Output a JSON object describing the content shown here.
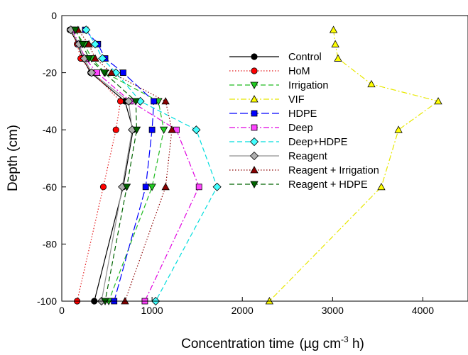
{
  "chart_data": {
    "type": "line",
    "orientation": "depth-profile",
    "xlabel": "Concentration time",
    "xlabel_unit_prefix": "(µg cm",
    "xlabel_unit_exp": "-3",
    "xlabel_unit_suffix": " h)",
    "ylabel": "Depth (cm)",
    "xlim": [
      0,
      4500
    ],
    "ylim": [
      -100,
      0
    ],
    "x_ticks": [
      0,
      1000,
      2000,
      3000,
      4000
    ],
    "y_ticks": [
      0,
      -20,
      -40,
      -60,
      -80,
      -100
    ],
    "grid": false,
    "legend_position": "top-right",
    "series": [
      {
        "name": "Control",
        "color": "#000000",
        "marker": "circle",
        "marker_fill": "#000000",
        "dash": "solid",
        "points": [
          [
            90,
            -5
          ],
          [
            180,
            -10
          ],
          [
            230,
            -15
          ],
          [
            320,
            -20
          ],
          [
            700,
            -30
          ],
          [
            790,
            -40
          ],
          [
            680,
            -60
          ],
          [
            360,
            -100
          ]
        ]
      },
      {
        "name": "HoM",
        "color": "#e41a1c",
        "marker": "circle",
        "marker_fill": "#ff0000",
        "dash": "dotted",
        "points": [
          [
            100,
            -5
          ],
          [
            170,
            -10
          ],
          [
            210,
            -15
          ],
          [
            340,
            -20
          ],
          [
            650,
            -30
          ],
          [
            600,
            -40
          ],
          [
            460,
            -60
          ],
          [
            170,
            -100
          ]
        ]
      },
      {
        "name": "Irrigation",
        "color": "#22bb22",
        "marker": "triangle-down",
        "marker_fill": "#22cc22",
        "dash": "dashed",
        "points": [
          [
            140,
            -5
          ],
          [
            250,
            -10
          ],
          [
            330,
            -15
          ],
          [
            480,
            -20
          ],
          [
            1070,
            -30
          ],
          [
            1130,
            -40
          ],
          [
            1000,
            -60
          ],
          [
            520,
            -100
          ]
        ]
      },
      {
        "name": "VIF",
        "color": "#e8e800",
        "marker": "triangle-up",
        "marker_fill": "#ffff00",
        "dash": "dashdot",
        "points": [
          [
            3010,
            -5
          ],
          [
            3030,
            -10
          ],
          [
            3060,
            -15
          ],
          [
            3430,
            -24
          ],
          [
            4170,
            -30
          ],
          [
            3730,
            -40
          ],
          [
            3540,
            -60
          ],
          [
            2300,
            -100
          ]
        ]
      },
      {
        "name": "HDPE",
        "color": "#0000ff",
        "marker": "square",
        "marker_fill": "#0000ff",
        "dash": "longdash",
        "points": [
          [
            260,
            -5
          ],
          [
            400,
            -10
          ],
          [
            480,
            -15
          ],
          [
            680,
            -20
          ],
          [
            1020,
            -30
          ],
          [
            1000,
            -40
          ],
          [
            930,
            -60
          ],
          [
            580,
            -100
          ]
        ]
      },
      {
        "name": "Deep",
        "color": "#e000e0",
        "marker": "square",
        "marker_fill": "#ff44ff",
        "dash": "dashdot",
        "points": [
          [
            120,
            -5
          ],
          [
            190,
            -10
          ],
          [
            260,
            -15
          ],
          [
            390,
            -20
          ],
          [
            760,
            -30
          ],
          [
            1270,
            -40
          ],
          [
            1520,
            -60
          ],
          [
            920,
            -100
          ]
        ]
      },
      {
        "name": "Deep+HDPE",
        "color": "#00dddd",
        "marker": "diamond",
        "marker_fill": "#44ffff",
        "dash": "dashed",
        "points": [
          [
            270,
            -5
          ],
          [
            370,
            -10
          ],
          [
            450,
            -15
          ],
          [
            600,
            -20
          ],
          [
            870,
            -30
          ],
          [
            1490,
            -40
          ],
          [
            1720,
            -60
          ],
          [
            1040,
            -100
          ]
        ]
      },
      {
        "name": "Reagent",
        "color": "#909090",
        "marker": "diamond",
        "marker_fill": "#b0b0b0",
        "dash": "solid",
        "points": [
          [
            100,
            -5
          ],
          [
            190,
            -10
          ],
          [
            250,
            -15
          ],
          [
            330,
            -20
          ],
          [
            740,
            -30
          ],
          [
            780,
            -40
          ],
          [
            670,
            -60
          ],
          [
            440,
            -100
          ]
        ]
      },
      {
        "name": "Reagent + Irrigation",
        "color": "#8b0000",
        "marker": "triangle-up",
        "marker_fill": "#8b0000",
        "dash": "dotted",
        "points": [
          [
            180,
            -5
          ],
          [
            300,
            -10
          ],
          [
            370,
            -15
          ],
          [
            550,
            -20
          ],
          [
            1150,
            -30
          ],
          [
            1220,
            -40
          ],
          [
            1150,
            -60
          ],
          [
            700,
            -100
          ]
        ]
      },
      {
        "name": "Reagent + HDPE",
        "color": "#006400",
        "marker": "triangle-down",
        "marker_fill": "#006400",
        "dash": "dashed",
        "points": [
          [
            150,
            -5
          ],
          [
            230,
            -10
          ],
          [
            300,
            -15
          ],
          [
            470,
            -20
          ],
          [
            820,
            -30
          ],
          [
            830,
            -40
          ],
          [
            720,
            -60
          ],
          [
            480,
            -100
          ]
        ]
      }
    ]
  }
}
